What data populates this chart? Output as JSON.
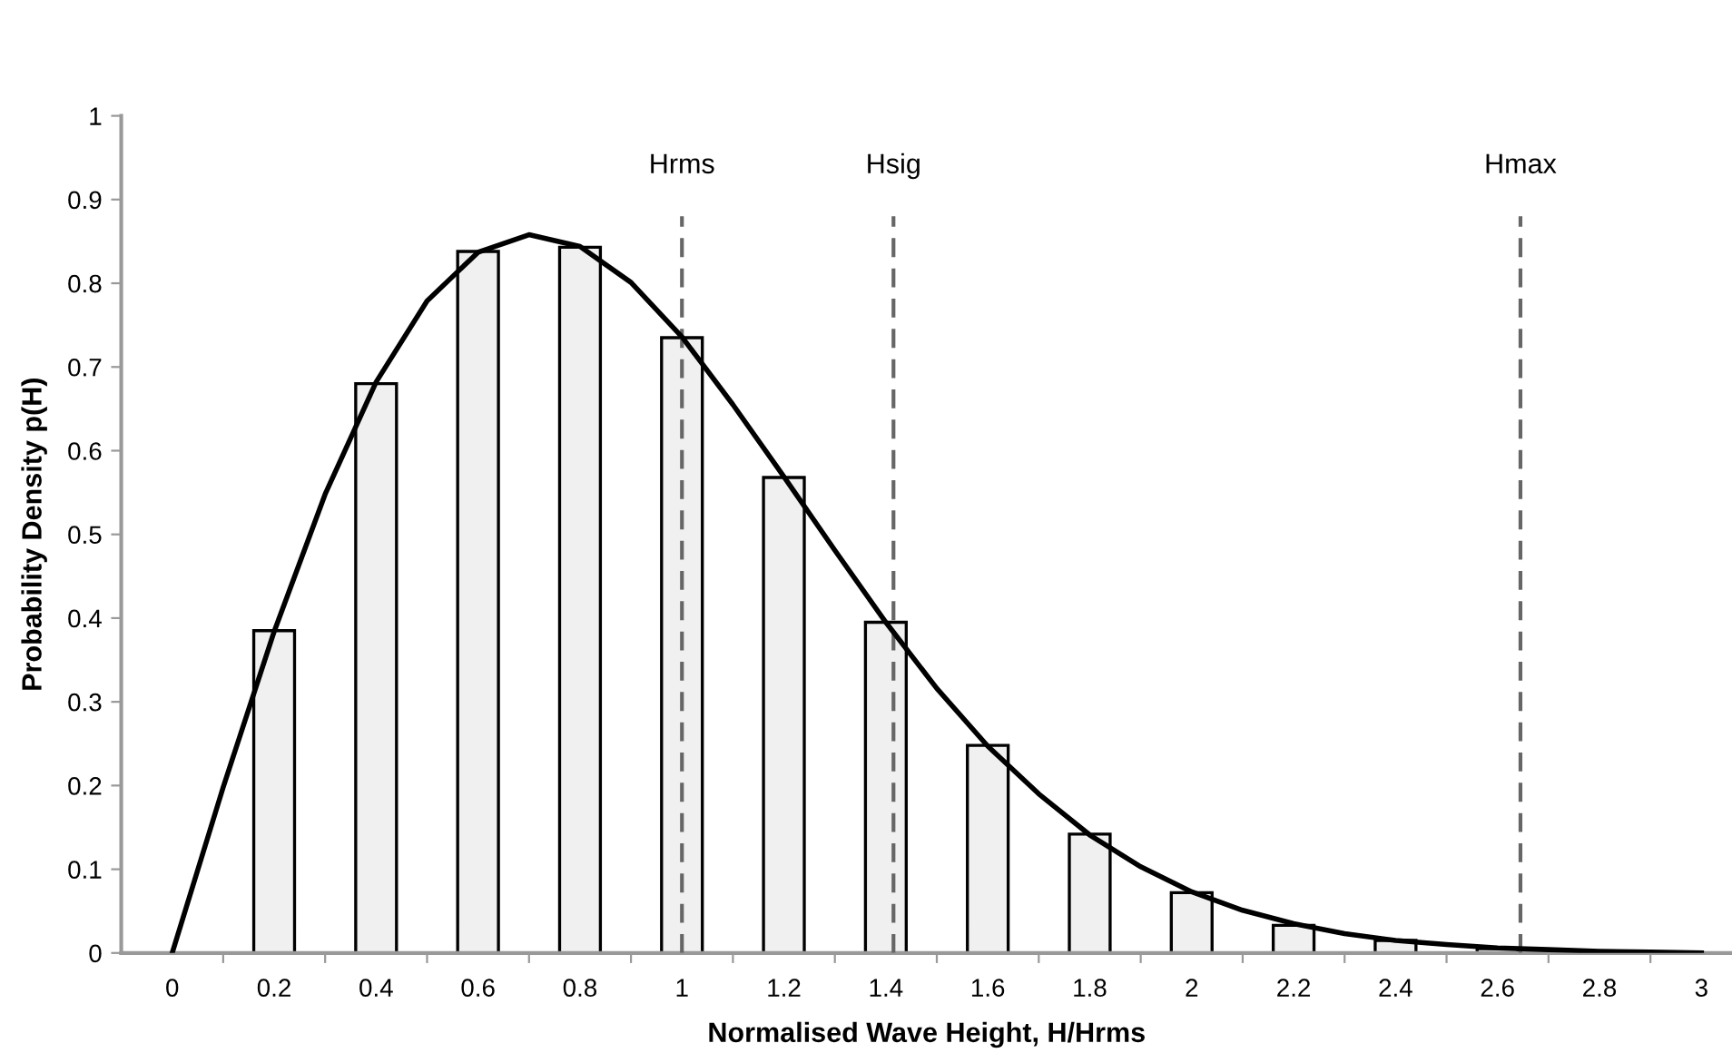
{
  "chart_data": {
    "type": "bar",
    "xlabel": "Normalised Wave Height, H/Hrms",
    "ylabel": "Probability Density p(H)",
    "x": [
      0.2,
      0.4,
      0.6,
      0.8,
      1.0,
      1.2,
      1.4,
      1.6,
      1.8,
      2.0,
      2.2,
      2.4,
      2.6
    ],
    "series": [
      {
        "color": "#f0f0f0",
        "values": [
          0.385,
          0.68,
          0.838,
          0.843,
          0.735,
          0.568,
          0.395,
          0.248,
          0.142,
          0.072,
          0.033,
          0.015,
          0.005
        ]
      },
      {
        "type": "line",
        "color": "#000000",
        "x": [
          0,
          0.1,
          0.2,
          0.3,
          0.4,
          0.5,
          0.6,
          0.7,
          0.8,
          0.9,
          1.0,
          1.1,
          1.2,
          1.3,
          1.4,
          1.5,
          1.6,
          1.7,
          1.8,
          1.9,
          2.0,
          2.1,
          2.2,
          2.3,
          2.4,
          2.5,
          2.6,
          2.7,
          2.8,
          2.9,
          3.0
        ],
        "values": [
          0,
          0.198,
          0.384,
          0.548,
          0.682,
          0.779,
          0.837,
          0.858,
          0.844,
          0.801,
          0.736,
          0.655,
          0.569,
          0.481,
          0.395,
          0.316,
          0.247,
          0.19,
          0.141,
          0.103,
          0.073,
          0.051,
          0.035,
          0.023,
          0.015,
          0.01,
          0.006,
          0.004,
          0.002,
          0.001,
          0
        ]
      }
    ],
    "ref_lines": [
      {
        "axis": "x",
        "value": 1.0,
        "label": "Hrms",
        "color": "#666666",
        "line_style": "dashed"
      },
      {
        "axis": "x",
        "value": 1.415,
        "label": "Hsig",
        "color": "#666666",
        "line_style": "dashed"
      },
      {
        "axis": "x",
        "value": 2.645,
        "label": "Hmax",
        "color": "#666666",
        "line_style": "dashed"
      }
    ],
    "xlim": [
      -0.1,
      3.06
    ],
    "xticks": [
      0,
      {
        "value": 0.1,
        "label": null
      },
      0.2,
      {
        "value": 0.3,
        "label": null
      },
      0.4,
      {
        "value": 0.5,
        "label": null
      },
      0.6,
      {
        "value": 0.7,
        "label": null
      },
      0.8,
      {
        "value": 0.9,
        "label": null
      },
      1,
      {
        "value": 1.1,
        "label": null
      },
      1.2,
      {
        "value": 1.3,
        "label": null
      },
      1.4,
      {
        "value": 1.5,
        "label": null
      },
      1.6,
      {
        "value": 1.7,
        "label": null
      },
      1.8,
      {
        "value": 1.9,
        "label": null
      },
      2,
      {
        "value": 2.1,
        "label": null
      },
      2.2,
      {
        "value": 2.3,
        "label": null
      },
      2.4,
      {
        "value": 2.5,
        "label": null
      },
      2.6,
      {
        "value": 2.7,
        "label": null
      },
      2.8,
      {
        "value": 2.9,
        "label": null
      },
      3
    ],
    "ylim": [
      0,
      1
    ],
    "yticks": [
      0,
      0.1,
      0.2,
      0.3,
      0.4,
      0.5,
      0.6,
      0.7,
      0.8,
      0.9,
      1
    ],
    "grid": false,
    "legend": false
  }
}
